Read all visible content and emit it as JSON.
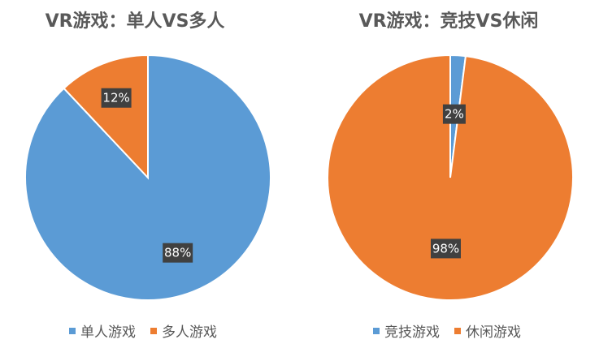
{
  "colors": {
    "blue": "#5B9BD5",
    "orange": "#ED7D31",
    "label_bg": "#404040",
    "text": "#595959"
  },
  "chart_data": [
    {
      "type": "pie",
      "title": "VR游戏：单人VS多人",
      "legend_position": "bottom",
      "slices": [
        {
          "name": "单人游戏",
          "value": 88,
          "label": "88%",
          "color": "#5B9BD5"
        },
        {
          "name": "多人游戏",
          "value": 12,
          "label": "12%",
          "color": "#ED7D31"
        }
      ]
    },
    {
      "type": "pie",
      "title": "VR游戏：竞技VS休闲",
      "legend_position": "bottom",
      "slices": [
        {
          "name": "竞技游戏",
          "value": 2,
          "label": "2%",
          "color": "#5B9BD5"
        },
        {
          "name": "休闲游戏",
          "value": 98,
          "label": "98%",
          "color": "#ED7D31"
        }
      ]
    }
  ]
}
